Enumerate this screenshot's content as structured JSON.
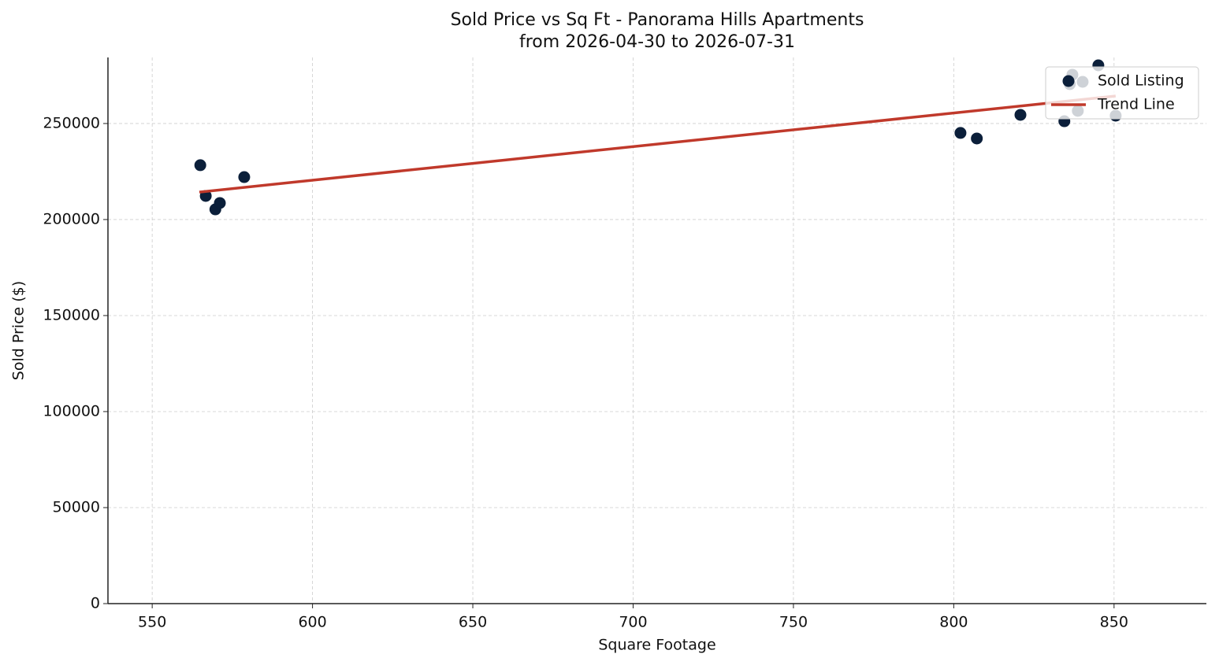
{
  "chart_data": {
    "type": "scatter",
    "title": "Sold Price vs Sq Ft - Panorama Hills Apartments",
    "subtitle": "from 2026-04-30 to 2026-07-31",
    "x_label": "Square Footage",
    "y_label": "Sold Price ($)",
    "xlim": [
      536.2,
      878.8
    ],
    "ylim": [
      0,
      284400
    ],
    "xticks": [
      550,
      600,
      650,
      700,
      750,
      800,
      850
    ],
    "yticks": [
      0,
      50000,
      100000,
      150000,
      200000,
      250000
    ],
    "grid": true,
    "legend": "upper right",
    "series": [
      {
        "name": "Sold Listing",
        "type": "scatter",
        "color": "#0b1f3a",
        "x": [
          565.0,
          566.7,
          569.7,
          571.1,
          578.7,
          802.1,
          807.2,
          820.8,
          834.5,
          836.2,
          837.0,
          838.7,
          840.2,
          845.1,
          850.5
        ],
        "values": [
          228300,
          212300,
          205300,
          208600,
          222100,
          245100,
          242200,
          254500,
          251200,
          270500,
          275400,
          256600,
          271700,
          280300,
          254100
        ]
      },
      {
        "name": "Trend Line",
        "type": "line",
        "color": "#c0392b",
        "x": [
          564.7,
          850.5
        ],
        "values": [
          214300,
          264300
        ]
      }
    ]
  }
}
